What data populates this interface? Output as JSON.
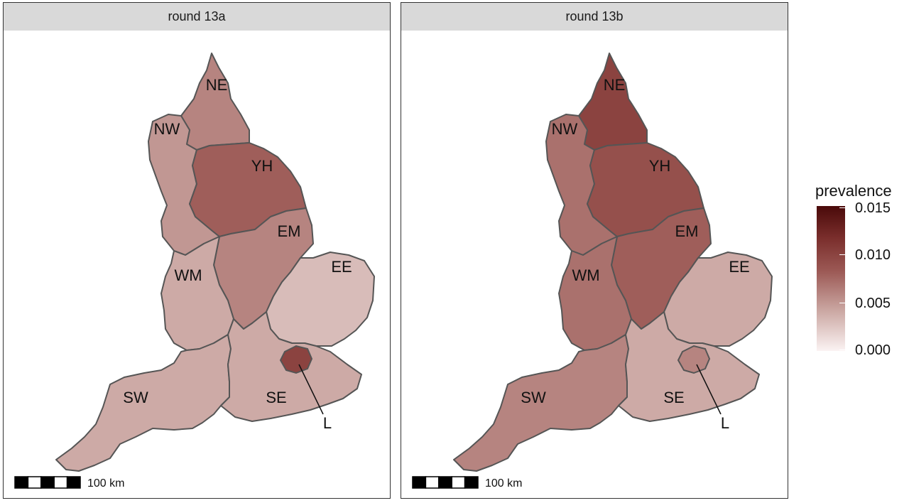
{
  "panels": [
    {
      "title": "round 13a",
      "regions": [
        {
          "name": "NE",
          "label": "NE",
          "prevalence": 0.006
        },
        {
          "name": "NW",
          "label": "NW",
          "prevalence": 0.005
        },
        {
          "name": "YH",
          "label": "YH",
          "prevalence": 0.008
        },
        {
          "name": "EM",
          "label": "EM",
          "prevalence": 0.006
        },
        {
          "name": "WM",
          "label": "WM",
          "prevalence": 0.004
        },
        {
          "name": "EE",
          "label": "EE",
          "prevalence": 0.003
        },
        {
          "name": "SW",
          "label": "SW",
          "prevalence": 0.004
        },
        {
          "name": "SE",
          "label": "SE",
          "prevalence": 0.004
        },
        {
          "name": "L",
          "label": "L",
          "prevalence": 0.01
        }
      ],
      "scalebar": "100 km"
    },
    {
      "title": "round 13b",
      "regions": [
        {
          "name": "NE",
          "label": "NE",
          "prevalence": 0.01
        },
        {
          "name": "NW",
          "label": "NW",
          "prevalence": 0.007
        },
        {
          "name": "YH",
          "label": "YH",
          "prevalence": 0.009
        },
        {
          "name": "EM",
          "label": "EM",
          "prevalence": 0.008
        },
        {
          "name": "WM",
          "label": "WM",
          "prevalence": 0.007
        },
        {
          "name": "EE",
          "label": "EE",
          "prevalence": 0.004
        },
        {
          "name": "SW",
          "label": "SW",
          "prevalence": 0.006
        },
        {
          "name": "SE",
          "label": "SE",
          "prevalence": 0.004
        },
        {
          "name": "L",
          "label": "L",
          "prevalence": 0.006
        }
      ],
      "scalebar": "100 km"
    }
  ],
  "legend": {
    "title": "prevalence",
    "ticks": [
      "0.015",
      "0.010",
      "0.005",
      "0.000"
    ],
    "range": [
      0,
      0.015
    ],
    "colors": {
      "low": "#fbf3f3",
      "high": "#4a0a0a"
    }
  },
  "colors": {
    "border": "#555555",
    "strip": "#d9d9d9"
  }
}
